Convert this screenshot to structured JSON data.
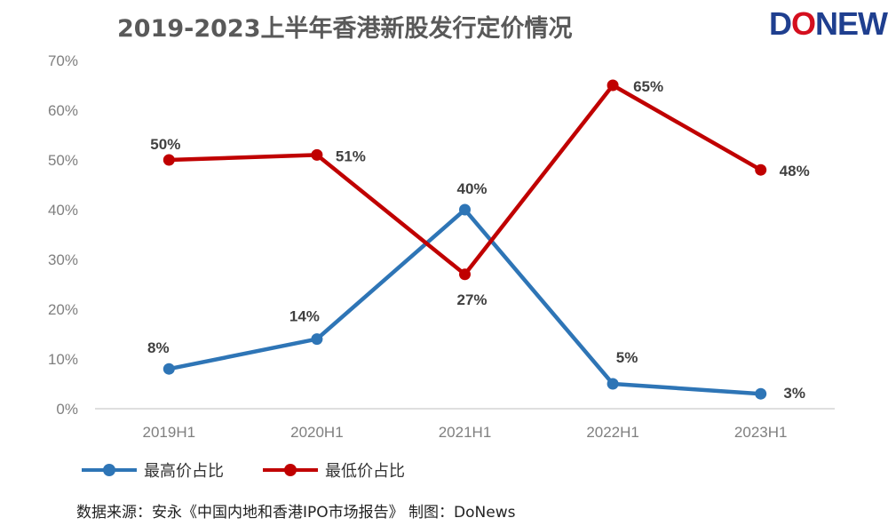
{
  "header": {
    "title": "2019-2023上半年香港新股发行定价情况",
    "logo_text_1": "D",
    "logo_text_2": "O",
    "logo_text_3": "NEWS"
  },
  "footer": {
    "source": "数据来源：安永《中国内地和香港IPO市场报告》  制图：DoNews"
  },
  "chart_data": {
    "type": "line",
    "title": "2019-2023上半年香港新股发行定价情况",
    "categories": [
      "2019H1",
      "2020H1",
      "2021H1",
      "2022H1",
      "2023H1"
    ],
    "series": [
      {
        "name": "最高价占比",
        "color": "#2e75b6",
        "values": [
          8,
          14,
          40,
          5,
          3
        ],
        "labels": [
          "8%",
          "14%",
          "40%",
          "5%",
          "3%"
        ]
      },
      {
        "name": "最低价占比",
        "color": "#c00000",
        "values": [
          50,
          51,
          27,
          65,
          48
        ],
        "labels": [
          "50%",
          "51%",
          "27%",
          "65%",
          "48%"
        ]
      }
    ],
    "ylim": [
      0,
      70
    ],
    "yticks": [
      0,
      10,
      20,
      30,
      40,
      50,
      60,
      70
    ],
    "ytick_labels": [
      "0%",
      "10%",
      "20%",
      "30%",
      "40%",
      "50%",
      "60%",
      "70%"
    ],
    "grid": false,
    "legend_position": "bottom-left"
  }
}
